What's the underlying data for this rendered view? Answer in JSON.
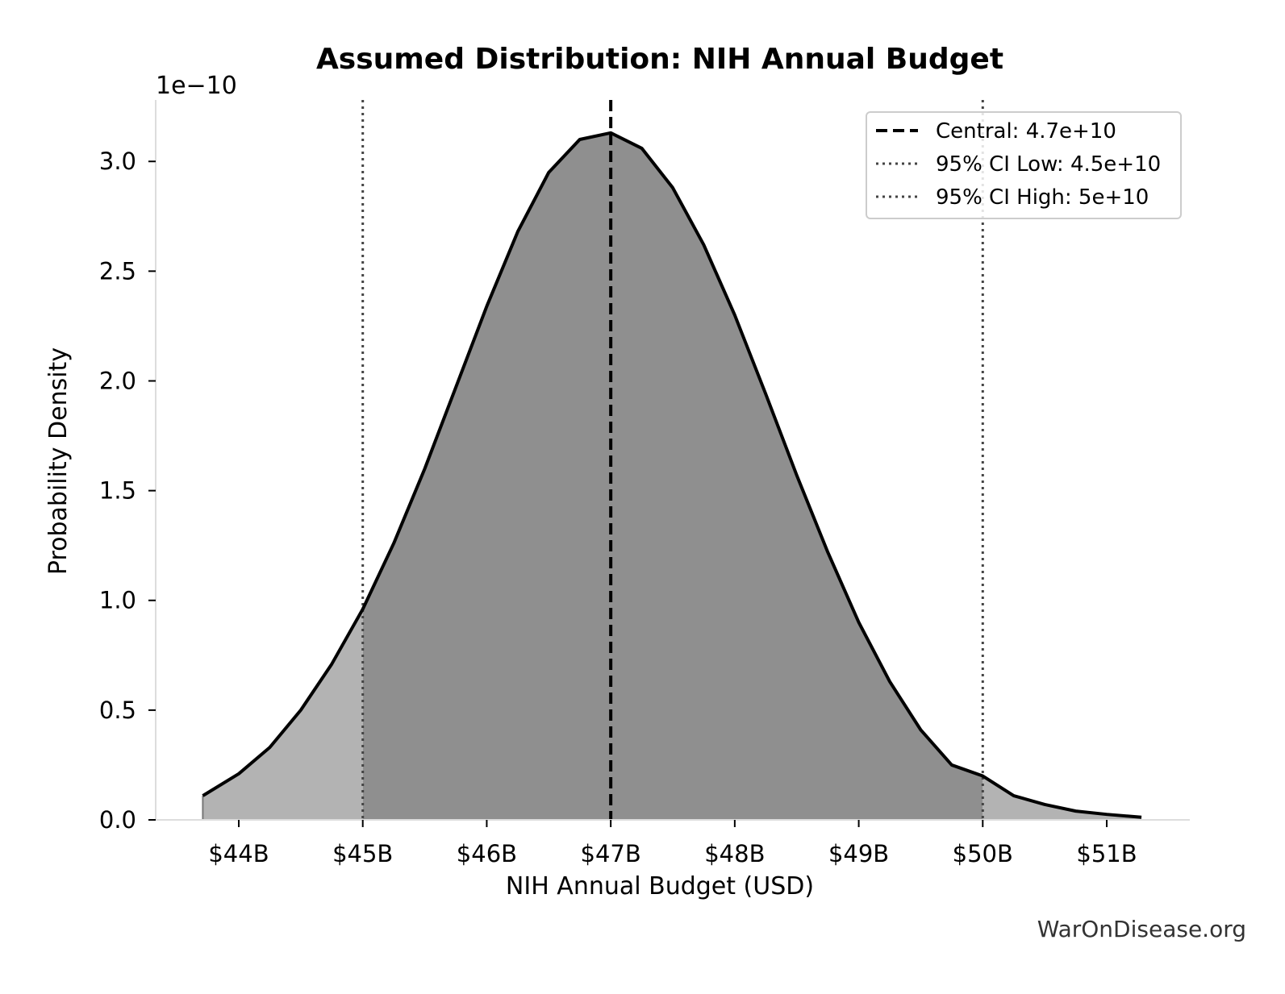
{
  "chart_data": {
    "type": "area",
    "title": "Assumed Distribution: NIH Annual Budget",
    "xlabel": "NIH Annual Budget (USD)",
    "ylabel": "Probability Density",
    "y_offset_label": "1e−10",
    "xlim": [
      43.33,
      51.67
    ],
    "ylim": [
      0,
      3.28
    ],
    "x_ticks": [
      {
        "value": 44,
        "label": "$44B"
      },
      {
        "value": 45,
        "label": "$45B"
      },
      {
        "value": 46,
        "label": "$46B"
      },
      {
        "value": 47,
        "label": "$47B"
      },
      {
        "value": 48,
        "label": "$48B"
      },
      {
        "value": 49,
        "label": "$49B"
      },
      {
        "value": 50,
        "label": "$50B"
      },
      {
        "value": 51,
        "label": "$51B"
      }
    ],
    "y_ticks": [
      {
        "value": 0.0,
        "label": "0.0"
      },
      {
        "value": 0.5,
        "label": "0.5"
      },
      {
        "value": 1.0,
        "label": "1.0"
      },
      {
        "value": 1.5,
        "label": "1.5"
      },
      {
        "value": 2.0,
        "label": "2.0"
      },
      {
        "value": 2.5,
        "label": "2.5"
      },
      {
        "value": 3.0,
        "label": "3.0"
      }
    ],
    "curve": {
      "x": [
        43.71,
        44.0,
        44.25,
        44.5,
        44.75,
        45.0,
        45.25,
        45.5,
        45.75,
        46.0,
        46.25,
        46.5,
        46.75,
        47.0,
        47.25,
        47.5,
        47.75,
        48.0,
        48.25,
        48.5,
        48.75,
        49.0,
        49.25,
        49.5,
        49.75,
        50.0,
        50.25,
        50.5,
        50.75,
        51.0,
        51.28
      ],
      "y": [
        0.11,
        0.21,
        0.33,
        0.5,
        0.71,
        0.96,
        1.26,
        1.6,
        1.97,
        2.34,
        2.68,
        2.95,
        3.1,
        3.13,
        3.06,
        2.88,
        2.62,
        2.3,
        1.94,
        1.57,
        1.22,
        0.9,
        0.63,
        0.41,
        0.25,
        0.2,
        0.11,
        0.07,
        0.04,
        0.025,
        0.012
      ]
    },
    "ci_band": [
      45.0,
      50.0
    ],
    "fill_colors": {
      "inner": "#8f8f8f",
      "outer": "#b3b3b3"
    },
    "reference_lines": [
      {
        "name": "Central: 4.7e+10",
        "x": 47.0,
        "style": "dashed"
      },
      {
        "name": "95% CI Low: 4.5e+10",
        "x": 45.0,
        "style": "dotted"
      },
      {
        "name": "95% CI High: 5e+10",
        "x": 50.0,
        "style": "dotted"
      }
    ],
    "legend_position": "top-right",
    "grid": false
  },
  "watermark": "WarOnDisease.org"
}
